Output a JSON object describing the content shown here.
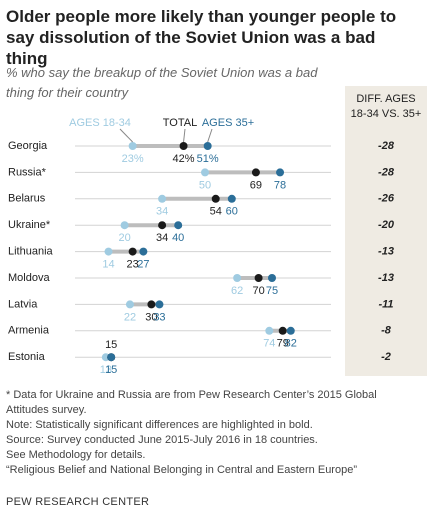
{
  "chart_data": {
    "type": "dot",
    "title": "Older people more likely than younger people to say dissolution of the Soviet Union was a bad thing",
    "subtitle": "% who say the breakup of the Soviet Union was a bad thing for their country",
    "categories": [
      "Georgia",
      "Russia*",
      "Belarus",
      "Ukraine*",
      "Lithuania",
      "Moldova",
      "Latvia",
      "Armenia",
      "Estonia"
    ],
    "series": [
      {
        "name": "AGES 18-34",
        "color": "#9fcbe1",
        "values": [
          23,
          50,
          34,
          20,
          14,
          62,
          22,
          74,
          13
        ],
        "value_labels": [
          "23%",
          "50",
          "34",
          "20",
          "14",
          "62",
          "22",
          "74",
          "13"
        ]
      },
      {
        "name": "TOTAL",
        "color": "#1a1a1a",
        "values": [
          42,
          69,
          54,
          34,
          23,
          70,
          30,
          79,
          15
        ],
        "value_labels": [
          "42%",
          "69",
          "54",
          "34",
          "23",
          "70",
          "30",
          "79",
          "15"
        ]
      },
      {
        "name": "AGES 35+",
        "color": "#2b6e98",
        "values": [
          51,
          78,
          60,
          40,
          27,
          75,
          33,
          82,
          15
        ],
        "value_labels": [
          "51%",
          "78",
          "60",
          "40",
          "27",
          "75",
          "33",
          "82",
          "15"
        ]
      }
    ],
    "xlim": [
      0,
      100
    ],
    "diff_header": "DIFF. AGES 18-34 VS. 35+",
    "differences": [
      -28,
      -28,
      -26,
      -20,
      -13,
      -13,
      -11,
      -8,
      -2
    ],
    "notes": [
      "* Data for Ukraine and Russia are from Pew Research Center’s 2015 Global Attitudes survey.",
      "Note: Statistically significant differences are highlighted in bold.",
      "Source: Survey conducted June 2015-July 2016 in 18 countries.",
      "See Methodology for details.",
      "“Religious Belief and National Belonging in Central and Eastern Europe”"
    ],
    "source": "PEW RESEARCH CENTER"
  }
}
